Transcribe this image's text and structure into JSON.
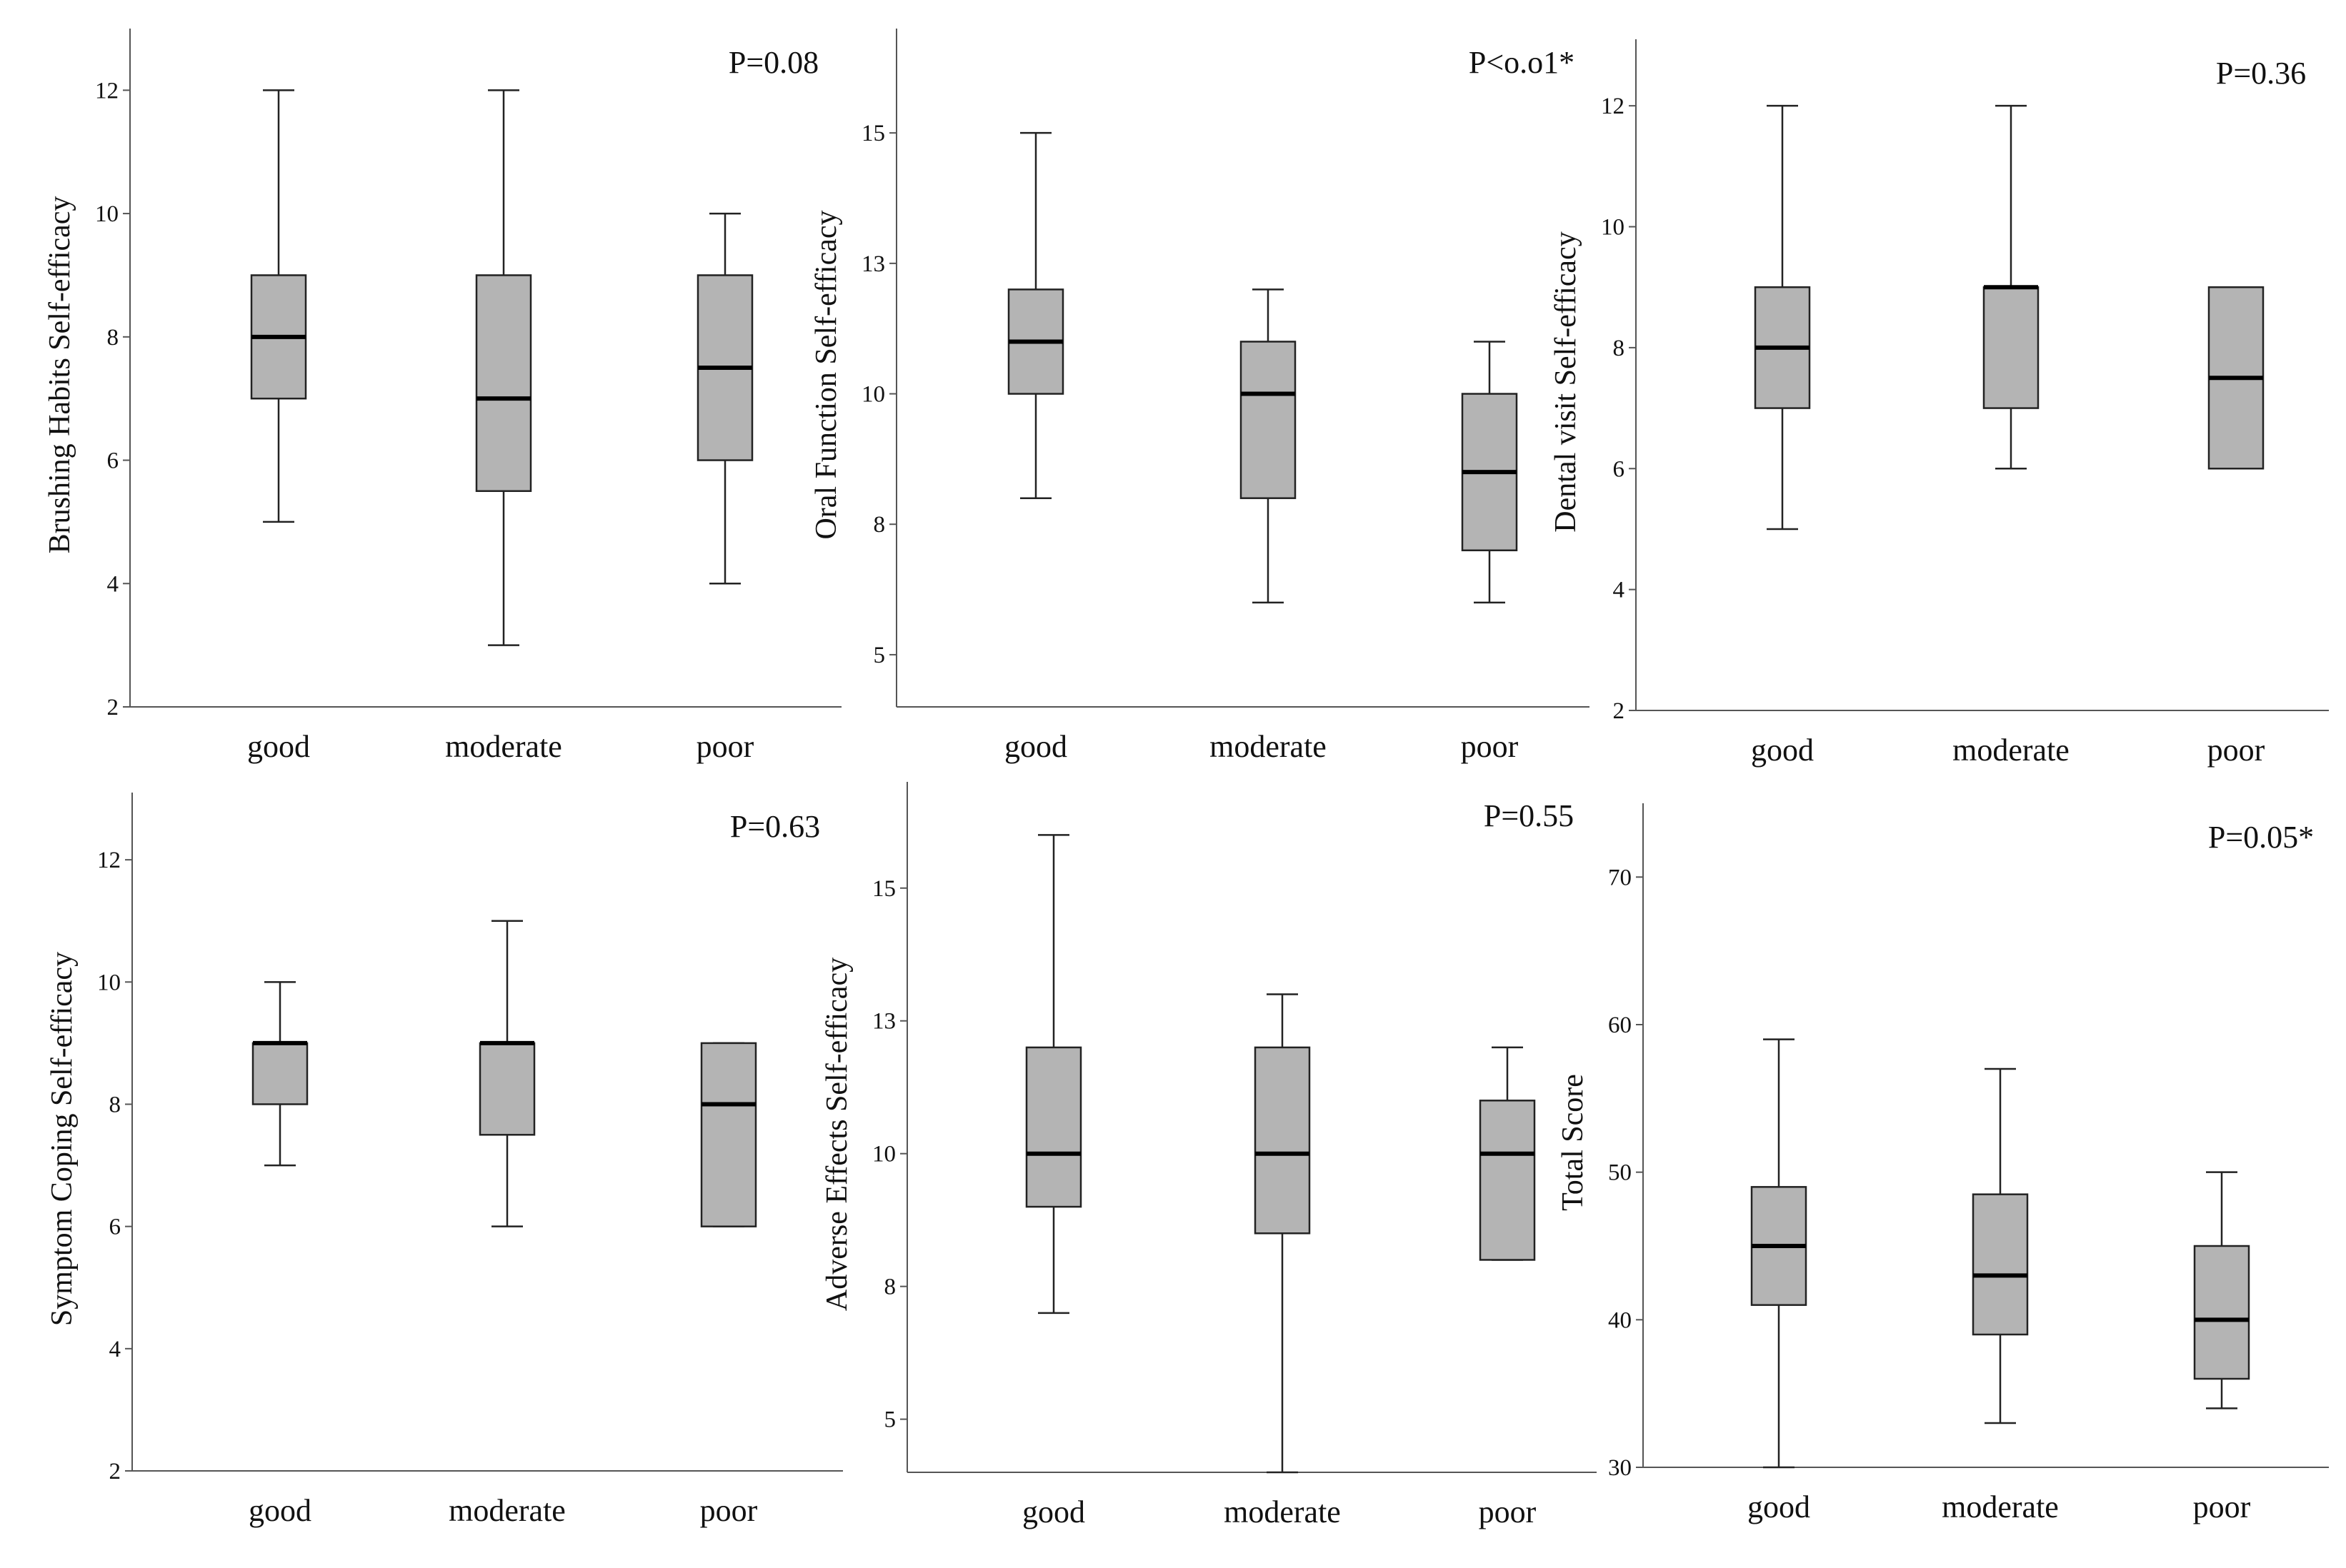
{
  "figure": {
    "box_color": "#b4b4b4",
    "line_color": "#222222",
    "background": "#ffffff"
  },
  "chart_data": [
    {
      "type": "box",
      "ylabel": "Brushing Habits Self-efficacy",
      "annotation": "P=0.08",
      "categories": [
        "good",
        "moderate",
        "poor"
      ],
      "yticks": [
        2,
        4,
        6,
        8,
        10,
        12
      ],
      "ytick_labels": [
        "2",
        "4",
        "6",
        "8",
        "10",
        "12"
      ],
      "ylim": [
        2,
        13
      ],
      "boxes": [
        {
          "min": 5,
          "q1": 7,
          "median": 8,
          "q3": 9,
          "max": 12
        },
        {
          "min": 3,
          "q1": 5.5,
          "median": 7,
          "q3": 9,
          "max": 12
        },
        {
          "min": 4,
          "q1": 6,
          "median": 7.5,
          "q3": 9,
          "max": 10
        }
      ]
    },
    {
      "type": "box",
      "ylabel": "Oral Function Self-efficacy",
      "annotation": "P<o.o1*",
      "categories": [
        "good",
        "moderate",
        "poor"
      ],
      "yticks": [
        5,
        7.5,
        10,
        12.5,
        15
      ],
      "ytick_labels": [
        "5",
        "8",
        "10",
        "13",
        "15"
      ],
      "ylim": [
        4,
        17
      ],
      "boxes": [
        {
          "min": 8,
          "q1": 10,
          "median": 11,
          "q3": 12,
          "max": 15
        },
        {
          "min": 6,
          "q1": 8,
          "median": 10,
          "q3": 11,
          "max": 12
        },
        {
          "min": 6,
          "q1": 7,
          "median": 8.5,
          "q3": 10,
          "max": 11
        }
      ]
    },
    {
      "type": "box",
      "ylabel": "Dental visit Self-efficacy",
      "annotation": "P=0.36",
      "categories": [
        "good",
        "moderate",
        "poor"
      ],
      "yticks": [
        2,
        4,
        6,
        8,
        10,
        12
      ],
      "ytick_labels": [
        "2",
        "4",
        "6",
        "8",
        "10",
        "12"
      ],
      "ylim": [
        2,
        13.1
      ],
      "boxes": [
        {
          "min": 5,
          "q1": 7,
          "median": 8,
          "q3": 9,
          "max": 12
        },
        {
          "min": 6,
          "q1": 7,
          "median": 9,
          "q3": 9,
          "max": 12
        },
        {
          "min": 6,
          "q1": 6,
          "median": 7.5,
          "q3": 9,
          "max": 9
        }
      ]
    },
    {
      "type": "box",
      "ylabel": "Symptom Coping Self-efficacy",
      "annotation": "P=0.63",
      "categories": [
        "good",
        "moderate",
        "poor"
      ],
      "yticks": [
        2,
        4,
        6,
        8,
        10,
        12
      ],
      "ytick_labels": [
        "2",
        "4",
        "6",
        "8",
        "10",
        "12"
      ],
      "ylim": [
        2,
        13.1
      ],
      "boxes": [
        {
          "min": 7,
          "q1": 8,
          "median": 9,
          "q3": 9,
          "max": 10
        },
        {
          "min": 6,
          "q1": 7.5,
          "median": 9,
          "q3": 9,
          "max": 11
        },
        {
          "min": 6,
          "q1": 6,
          "median": 8,
          "q3": 9,
          "max": 9
        }
      ]
    },
    {
      "type": "box",
      "ylabel": "Adverse Effects Self-efficacy",
      "annotation": "P=0.55",
      "categories": [
        "good",
        "moderate",
        "poor"
      ],
      "yticks": [
        5,
        7.5,
        10,
        12.5,
        15
      ],
      "ytick_labels": [
        "5",
        "8",
        "10",
        "13",
        "15"
      ],
      "ylim": [
        4,
        17
      ],
      "boxes": [
        {
          "min": 7,
          "q1": 9,
          "median": 10,
          "q3": 12,
          "max": 16
        },
        {
          "min": 4,
          "q1": 8.5,
          "median": 10,
          "q3": 12,
          "max": 13
        },
        {
          "min": 8,
          "q1": 8,
          "median": 10,
          "q3": 11,
          "max": 12
        }
      ]
    },
    {
      "type": "box",
      "ylabel": "Total Score",
      "annotation": "P=0.05*",
      "categories": [
        "good",
        "moderate",
        "poor"
      ],
      "yticks": [
        30,
        40,
        50,
        60,
        70
      ],
      "ytick_labels": [
        "30",
        "40",
        "50",
        "60",
        "70"
      ],
      "ylim": [
        30,
        75
      ],
      "boxes": [
        {
          "min": 30,
          "q1": 41,
          "median": 45,
          "q3": 49,
          "max": 59
        },
        {
          "min": 33,
          "q1": 39,
          "median": 43,
          "q3": 48.5,
          "max": 57
        },
        {
          "min": 34,
          "q1": 36,
          "median": 40,
          "q3": 45,
          "max": 50
        }
      ]
    }
  ]
}
